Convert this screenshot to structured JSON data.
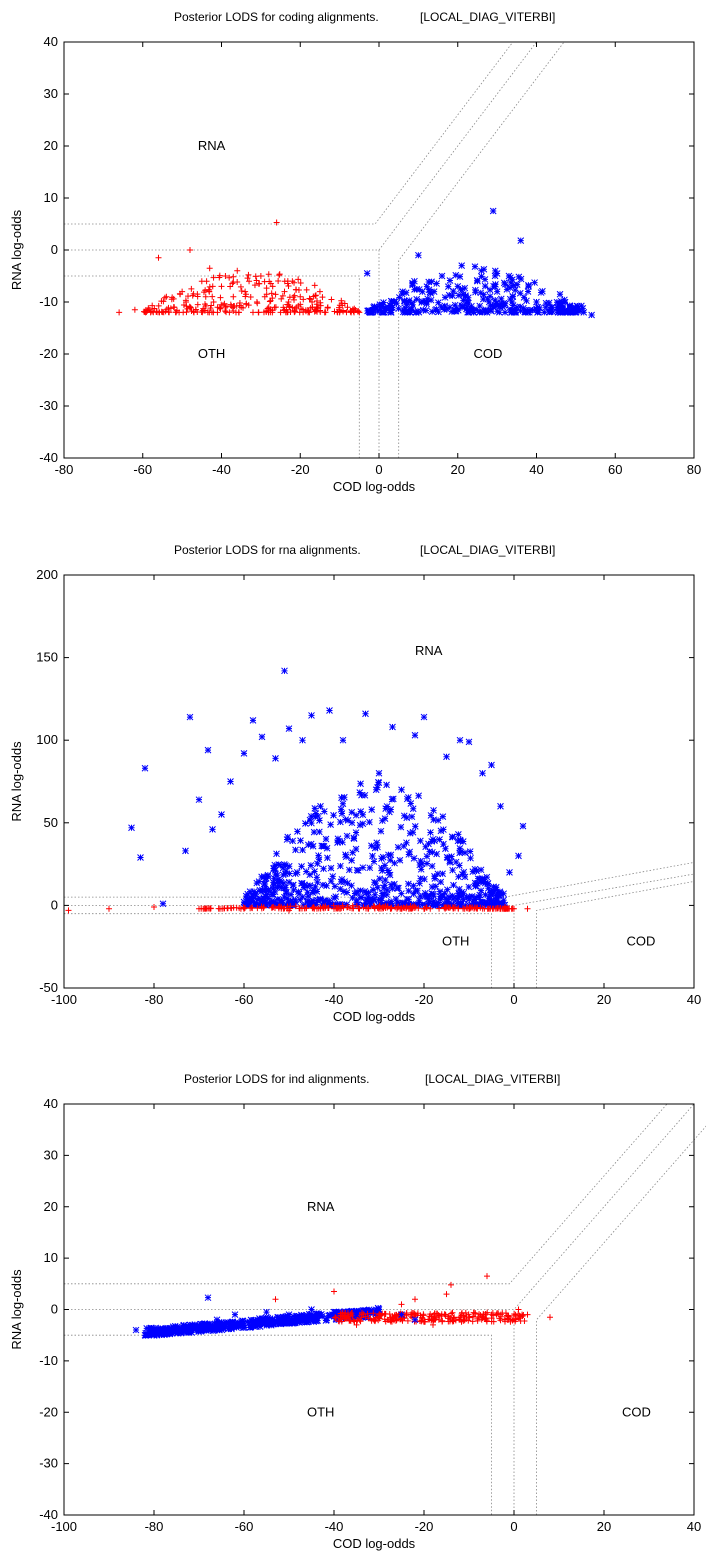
{
  "chart_data": [
    {
      "type": "scatter",
      "title": "Posterior LODS for coding alignments.",
      "subtitle": "[LOCAL_DIAG_VITERBI]",
      "xlabel": "COD log-odds",
      "ylabel": "RNA log-odds",
      "xlim": [
        -80,
        80
      ],
      "ylim": [
        -40,
        40
      ],
      "xticks": [
        "-80",
        "-60",
        "-40",
        "-20",
        "0",
        "20",
        "40",
        "60",
        "80"
      ],
      "yticks": [
        "40",
        "30",
        "20",
        "10",
        "0",
        "-10",
        "-20",
        "-30",
        "-40"
      ],
      "grid": false,
      "region_labels": [
        {
          "text": "RNA",
          "x": -46,
          "y": 20
        },
        {
          "text": "OTH",
          "x": -46,
          "y": -20
        },
        {
          "text": "COD",
          "x": 24,
          "y": -20
        }
      ],
      "series": [
        {
          "marker": "plus",
          "color": "#ff0000",
          "points": [
            [
              -66,
              -12
            ],
            [
              -62,
              -11.5
            ],
            [
              -58,
              -12
            ],
            [
              -56,
              -1.5
            ],
            [
              -54,
              -9
            ],
            [
              -52,
              -11
            ],
            [
              -50,
              -8
            ],
            [
              -49,
              -10
            ],
            [
              -48,
              0
            ],
            [
              -47,
              -12
            ],
            [
              -45,
              -6
            ],
            [
              -44,
              -9
            ],
            [
              -43,
              -3.5
            ],
            [
              -42,
              -10
            ],
            [
              -41,
              -11
            ],
            [
              -40,
              -7
            ],
            [
              -39,
              -5
            ],
            [
              -38,
              -12
            ],
            [
              -37,
              -9
            ],
            [
              -36,
              -4
            ],
            [
              -35,
              -11
            ],
            [
              -34,
              -8
            ],
            [
              -33,
              -6
            ],
            [
              -32,
              -12
            ],
            [
              -31,
              -10
            ],
            [
              -30,
              -5
            ],
            [
              -29,
              -9
            ],
            [
              -28,
              -11
            ],
            [
              -27,
              -7
            ],
            [
              -26,
              5.3
            ],
            [
              -25,
              -12
            ],
            [
              -24,
              -8
            ],
            [
              -23,
              -10
            ],
            [
              -22,
              -6
            ],
            [
              -21,
              -11
            ],
            [
              -20,
              -9
            ],
            [
              -18,
              -12
            ],
            [
              -17,
              -10
            ],
            [
              -15,
              -8
            ],
            [
              -13,
              -11
            ],
            [
              -10,
              -12
            ],
            [
              -8,
              -11
            ],
            [
              -5,
              -12
            ]
          ]
        },
        {
          "marker": "star",
          "color": "#0000ff",
          "points": [
            [
              -3,
              -4.5
            ],
            [
              -2,
              -12
            ],
            [
              1,
              -12
            ],
            [
              4,
              -10
            ],
            [
              6,
              -8
            ],
            [
              8,
              -12
            ],
            [
              9,
              -6
            ],
            [
              10,
              -1
            ],
            [
              12,
              -10
            ],
            [
              14,
              -8
            ],
            [
              16,
              -5
            ],
            [
              18,
              -11
            ],
            [
              20,
              -7
            ],
            [
              21,
              -3
            ],
            [
              22,
              -9
            ],
            [
              24,
              -12
            ],
            [
              25,
              -6
            ],
            [
              26,
              -4
            ],
            [
              28,
              -10
            ],
            [
              29,
              7.5
            ],
            [
              30,
              -8
            ],
            [
              32,
              -12
            ],
            [
              33,
              -5
            ],
            [
              34,
              -9
            ],
            [
              35,
              -11
            ],
            [
              36,
              1.8
            ],
            [
              38,
              -7
            ],
            [
              40,
              -10
            ],
            [
              42,
              -12
            ],
            [
              44,
              -11
            ],
            [
              46,
              -12
            ],
            [
              48,
              -12
            ],
            [
              50,
              -12
            ],
            [
              52,
              -12
            ],
            [
              54,
              -12.5
            ]
          ]
        }
      ],
      "dense_bands": [
        {
          "color": "#ff0000",
          "marker": "plus",
          "x": [
            -60,
            -5
          ],
          "y_floor": -12,
          "y_top": -4,
          "count": 260
        },
        {
          "color": "#0000ff",
          "marker": "star",
          "x": [
            -3,
            52
          ],
          "y_floor": -12,
          "y_top": -3,
          "count": 300
        }
      ],
      "boundaries": {
        "type": "coding"
      }
    },
    {
      "type": "scatter",
      "title": "Posterior LODS for rna alignments.",
      "subtitle": "[LOCAL_DIAG_VITERBI]",
      "xlabel": "COD log-odds",
      "ylabel": "RNA log-odds",
      "xlim": [
        -100,
        40
      ],
      "ylim": [
        -50,
        200
      ],
      "xticks": [
        "-100",
        "-80",
        "-60",
        "-40",
        "-20",
        "0",
        "20",
        "40"
      ],
      "yticks": [
        "200",
        "150",
        "100",
        "50",
        "0",
        "-50"
      ],
      "grid": false,
      "region_labels": [
        {
          "text": "RNA",
          "x": -22,
          "y": 154
        },
        {
          "text": "OTH",
          "x": -16,
          "y": -22
        },
        {
          "text": "COD",
          "x": 25,
          "y": -22
        }
      ],
      "series": [
        {
          "marker": "star",
          "color": "#0000ff",
          "points": [
            [
              -85,
              47
            ],
            [
              -83,
              29
            ],
            [
              -82,
              83
            ],
            [
              -78,
              1
            ],
            [
              -73,
              33
            ],
            [
              -72,
              114
            ],
            [
              -70,
              64
            ],
            [
              -68,
              94
            ],
            [
              -67,
              46
            ],
            [
              -65,
              55
            ],
            [
              -63,
              75
            ],
            [
              -60,
              92
            ],
            [
              -58,
              112
            ],
            [
              -56,
              102
            ],
            [
              -53,
              89
            ],
            [
              -51,
              142
            ],
            [
              -50,
              107
            ],
            [
              -47,
              100
            ],
            [
              -45,
              115
            ],
            [
              -43,
              60
            ],
            [
              -41,
              118
            ],
            [
              -38,
              100
            ],
            [
              -36,
              50
            ],
            [
              -33,
              116
            ],
            [
              -30,
              80
            ],
            [
              -27,
              108
            ],
            [
              -25,
              70
            ],
            [
              -22,
              103
            ],
            [
              -20,
              114
            ],
            [
              -18,
              40
            ],
            [
              -15,
              90
            ],
            [
              -12,
              100
            ],
            [
              -10,
              99
            ],
            [
              -7,
              80
            ],
            [
              -5,
              85
            ],
            [
              -3,
              60
            ],
            [
              -1,
              20
            ],
            [
              1,
              30
            ],
            [
              2,
              48
            ]
          ]
        },
        {
          "marker": "plus",
          "color": "#ff0000",
          "points": [
            [
              -99,
              -3
            ],
            [
              -90,
              -2
            ],
            [
              -80,
              -1
            ],
            [
              -70,
              -2
            ],
            [
              -60,
              -2
            ],
            [
              -50,
              -3
            ],
            [
              -40,
              -2
            ],
            [
              -30,
              -1
            ],
            [
              -20,
              -2
            ],
            [
              -10,
              -2
            ],
            [
              -2,
              -1
            ],
            [
              3,
              -2
            ]
          ]
        }
      ],
      "dense_bands": [
        {
          "color": "#0000ff",
          "marker": "star",
          "x": [
            -60,
            -2
          ],
          "y_floor": 0,
          "y_top": 75,
          "count": 650
        },
        {
          "color": "#ff0000",
          "marker": "plus",
          "x": [
            -70,
            0
          ],
          "y_floor": -2,
          "y_top": 0,
          "count": 220
        }
      ],
      "boundaries": {
        "type": "rna"
      }
    },
    {
      "type": "scatter",
      "title": "Posterior LODS for ind alignments.",
      "subtitle": "[LOCAL_DIAG_VITERBI]",
      "xlabel": "COD log-odds",
      "ylabel": "RNA log-odds",
      "xlim": [
        -100,
        40
      ],
      "ylim": [
        -40,
        40
      ],
      "xticks": [
        "-100",
        "-80",
        "-60",
        "-40",
        "-20",
        "0",
        "20",
        "40"
      ],
      "yticks": [
        "40",
        "30",
        "20",
        "10",
        "0",
        "-10",
        "-20",
        "-30",
        "-40"
      ],
      "grid": false,
      "region_labels": [
        {
          "text": "RNA",
          "x": -46,
          "y": 20
        },
        {
          "text": "OTH",
          "x": -46,
          "y": -20
        },
        {
          "text": "COD",
          "x": 24,
          "y": -20
        }
      ],
      "series": [
        {
          "marker": "star",
          "color": "#0000ff",
          "points": [
            [
              -84,
              -4
            ],
            [
              -82,
              -5
            ],
            [
              -80,
              -4
            ],
            [
              -77,
              -4.5
            ],
            [
              -75,
              -3.5
            ],
            [
              -72,
              -3
            ],
            [
              -70,
              -4
            ],
            [
              -68,
              2.3
            ],
            [
              -66,
              -2
            ],
            [
              -62,
              -1
            ],
            [
              -58,
              -3
            ],
            [
              -55,
              -0.5
            ],
            [
              -50,
              -1
            ],
            [
              -45,
              0
            ],
            [
              -40,
              -0.5
            ],
            [
              -35,
              -1
            ],
            [
              -30,
              0
            ],
            [
              -25,
              -1
            ],
            [
              -22,
              -2
            ]
          ]
        },
        {
          "marker": "plus",
          "color": "#ff0000",
          "points": [
            [
              -53,
              2
            ],
            [
              -40,
              3.5
            ],
            [
              -35,
              -3
            ],
            [
              -30,
              -1
            ],
            [
              -25,
              1
            ],
            [
              -22,
              2
            ],
            [
              -18,
              -3
            ],
            [
              -15,
              3
            ],
            [
              -14,
              4.8
            ],
            [
              -12,
              -2
            ],
            [
              -6,
              6.5
            ],
            [
              -5,
              -1
            ],
            [
              -2,
              -2
            ],
            [
              1,
              0
            ],
            [
              3,
              -1
            ],
            [
              8,
              -1.5
            ]
          ]
        }
      ],
      "dense_bands": [
        {
          "color": "#0000ff",
          "marker": "star",
          "x": [
            -82,
            -30
          ],
          "y_floor": -4,
          "y_top": 0.5,
          "count": 520
        },
        {
          "color": "#ff0000",
          "marker": "plus",
          "x": [
            -40,
            3
          ],
          "y_floor": -2.5,
          "y_top": 0.5,
          "count": 260
        }
      ],
      "boundaries": {
        "type": "ind"
      }
    }
  ]
}
